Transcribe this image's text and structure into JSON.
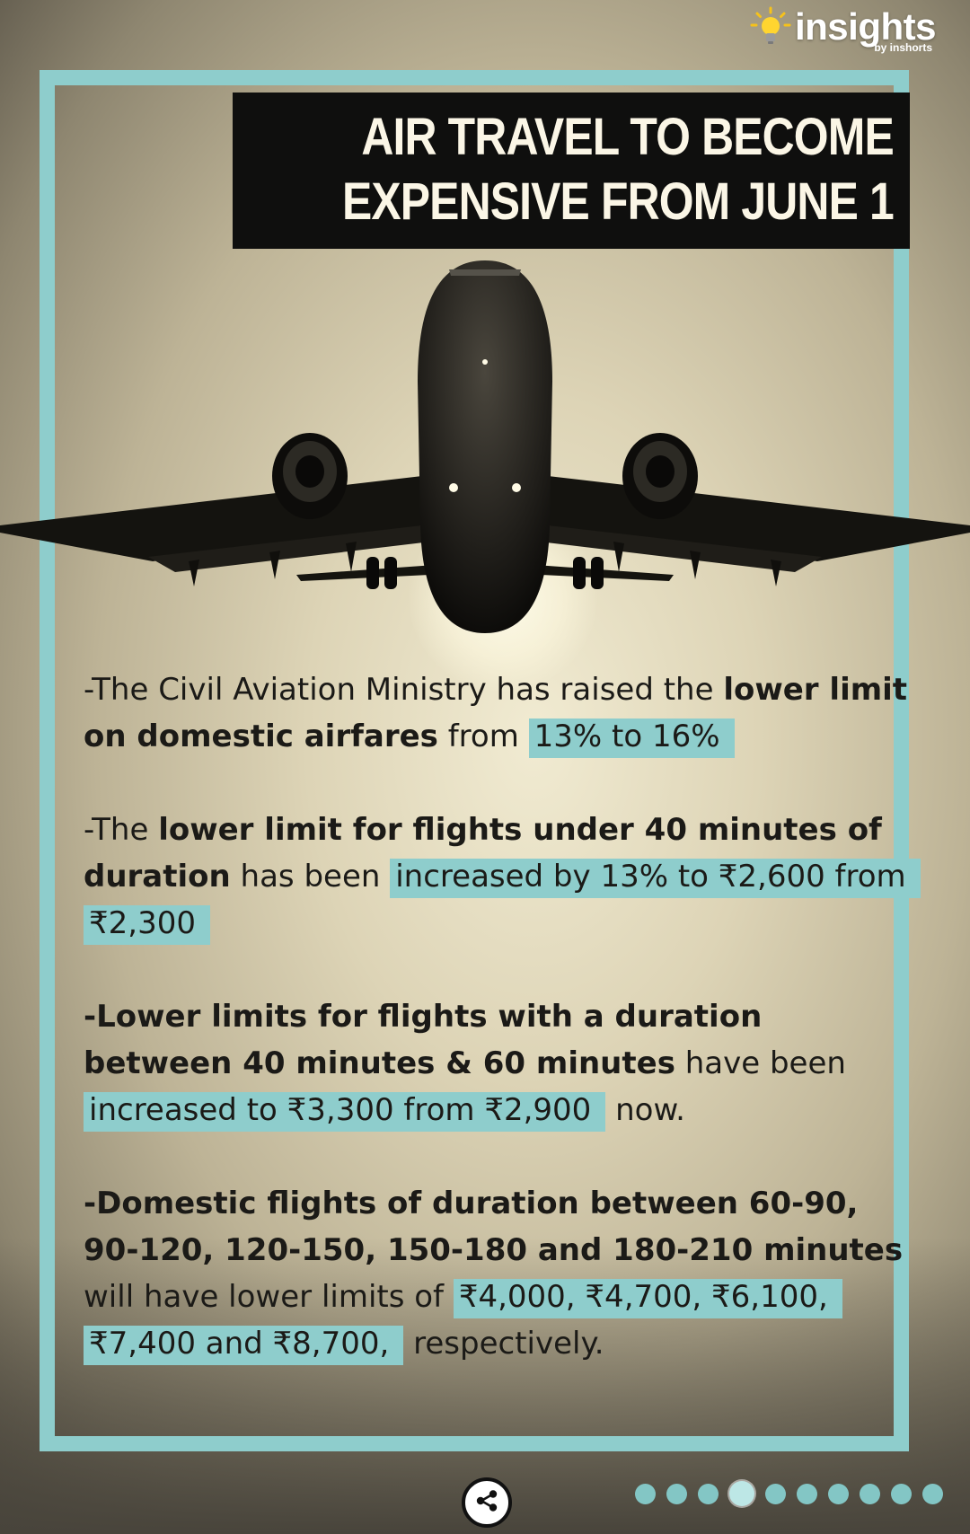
{
  "brand": {
    "name": "insights",
    "subtitle": "by inshorts",
    "icon": "lightbulb-icon"
  },
  "headline": {
    "line1": "AIR TRAVEL TO BECOME",
    "line2": "EXPENSIVE FROM JUNE 1"
  },
  "paragraphs": [
    {
      "p1": "-The Civil Aviation Ministry has raised the ",
      "b1": "lower limit on domestic airfares",
      "p2": " from ",
      "h1": "13% to 16%"
    },
    {
      "p1": "-The ",
      "b1": "lower limit for flights under 40 minutes of duration",
      "p2": " has been ",
      "h1": "increased by 13% to ₹2,600 from ₹2,300"
    },
    {
      "b1": "-Lower limits for flights with a duration between 40 minutes & 60 minutes",
      "p2": " have been ",
      "h1": "increased to ₹3,300 from ₹2,900",
      "p3": " now."
    },
    {
      "b1": "-Domestic flights of duration between 60-90, 90-120, 120-150, 150-180 and 180-210 minutes",
      "p2": " will have lower limits of ",
      "h1": "₹4,000, ₹4,700, ₹6,100, ₹7,400 and ₹8,700,",
      "p3": " respectively."
    }
  ],
  "pagination": {
    "total": 10,
    "active_index": 3
  },
  "share": {
    "icon": "share-icon"
  },
  "colors": {
    "accent": "#8ecdcc",
    "headline_bg": "#0f0f0e",
    "headline_text": "#fbf6e6",
    "body_text": "#1b1a17"
  }
}
